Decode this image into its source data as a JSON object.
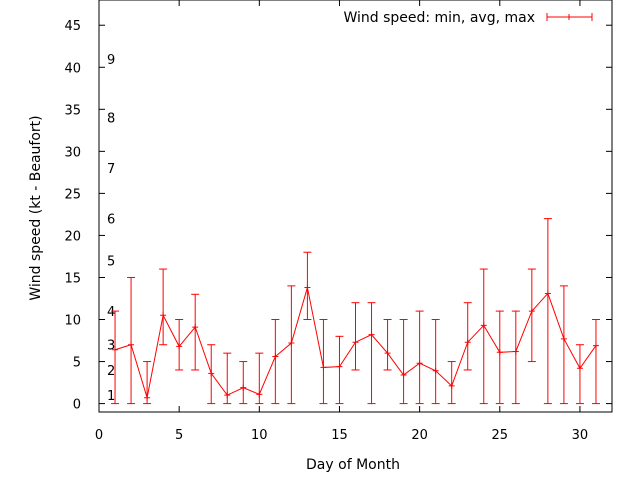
{
  "chart_data": {
    "type": "line",
    "title": "",
    "xlabel": "Day of Month",
    "ylabel": "Wind speed (kt - Beaufort)",
    "xlim": [
      0,
      32
    ],
    "ylim": [
      -1,
      48
    ],
    "x_ticks": [
      0,
      5,
      10,
      15,
      20,
      25,
      30
    ],
    "y_ticks": [
      0,
      5,
      10,
      15,
      20,
      25,
      30,
      35,
      40,
      45
    ],
    "grid": false,
    "legend_position": "top-right",
    "series": [
      {
        "name": "Wind speed: min, avg, max",
        "color": "#ff0000",
        "x": [
          1,
          2,
          3,
          4,
          5,
          6,
          7,
          8,
          9,
          10,
          11,
          12,
          13,
          14,
          15,
          16,
          17,
          18,
          19,
          20,
          21,
          22,
          23,
          24,
          25,
          26,
          27,
          28,
          29,
          30,
          31
        ],
        "avg": [
          6.4,
          7,
          0.7,
          10.5,
          6.8,
          9.1,
          3.6,
          1,
          1.9,
          1.1,
          5.6,
          7.2,
          13.8,
          4.3,
          4.4,
          7.3,
          8.2,
          6,
          3.4,
          4.8,
          3.9,
          2.1,
          7.3,
          9.3,
          6.1,
          6.2,
          11,
          13.1,
          7.7,
          4.2,
          6.9
        ],
        "min": [
          0,
          0,
          0,
          7,
          4,
          4,
          0,
          0,
          0,
          0,
          0,
          0,
          10,
          0,
          0,
          4,
          0,
          4,
          0,
          0,
          0,
          0,
          4,
          0,
          0,
          0,
          5,
          0,
          0,
          0,
          0
        ],
        "max": [
          11,
          15,
          5,
          16,
          10,
          13,
          7,
          6,
          5,
          6,
          10,
          14,
          18,
          10,
          8,
          12,
          12,
          10,
          10,
          11,
          10,
          5,
          12,
          16,
          11,
          11,
          16,
          22,
          14,
          7,
          10
        ]
      }
    ],
    "annotations": [
      {
        "text": "1",
        "y": 1
      },
      {
        "text": "2",
        "y": 4
      },
      {
        "text": "3",
        "y": 7
      },
      {
        "text": "4",
        "y": 11
      },
      {
        "text": "5",
        "y": 17
      },
      {
        "text": "6",
        "y": 22
      },
      {
        "text": "7",
        "y": 28
      },
      {
        "text": "8",
        "y": 34
      },
      {
        "text": "9",
        "y": 41
      }
    ]
  }
}
